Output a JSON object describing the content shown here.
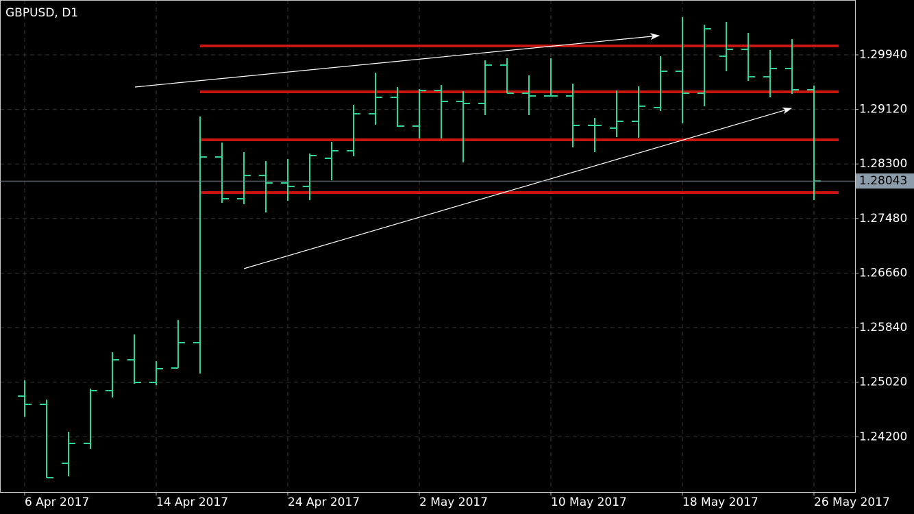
{
  "chart_data": {
    "type": "ohlc",
    "title": "GBPUSD, D1",
    "categories": [
      "6 Apr 2017",
      null,
      null,
      null,
      null,
      null,
      "14 Apr 2017",
      null,
      null,
      null,
      null,
      null,
      "24 Apr 2017",
      null,
      null,
      null,
      null,
      null,
      "2 May 2017",
      null,
      null,
      null,
      null,
      null,
      "10 May 2017",
      null,
      null,
      null,
      null,
      null,
      "18 May 2017",
      null,
      null,
      null,
      null,
      null,
      "26 May 2017"
    ],
    "open": [
      1.24811,
      1.24687,
      1.23801,
      1.241,
      1.24893,
      1.25357,
      1.25017,
      1.25233,
      1.25614,
      1.28405,
      1.27777,
      1.28127,
      1.28014,
      1.27962,
      1.28385,
      1.28498,
      1.29054,
      1.29301,
      1.28869,
      1.29404,
      1.2924,
      1.29209,
      1.29786,
      1.29363,
      1.29322,
      1.29322,
      1.28879,
      1.28838,
      1.28941,
      1.29147,
      1.29693,
      1.29363,
      1.29919,
      1.30022,
      1.2961,
      1.29734,
      1.29415
    ],
    "high": [
      1.25048,
      1.24759,
      1.24275,
      1.24924,
      1.2547,
      1.25738,
      1.25336,
      1.25954,
      1.29013,
      1.28622,
      1.28477,
      1.28344,
      1.28374,
      1.28457,
      1.28632,
      1.29188,
      1.29672,
      1.29456,
      1.29425,
      1.29487,
      1.29394,
      1.29858,
      1.29889,
      1.29631,
      1.29889,
      1.29507,
      1.28992,
      1.29404,
      1.29466,
      1.29919,
      1.30507,
      1.30393,
      1.30434,
      1.3027,
      1.30012,
      1.30177,
      1.29477
    ],
    "low": [
      1.24502,
      1.23585,
      1.23606,
      1.24018,
      1.2479,
      1.24996,
      1.24975,
      1.25233,
      1.25151,
      1.27715,
      1.27695,
      1.27571,
      1.27746,
      1.27756,
      1.28055,
      1.28416,
      1.28889,
      1.28859,
      1.28683,
      1.28683,
      1.28323,
      1.29034,
      1.29363,
      1.29034,
      1.29322,
      1.2855,
      1.28477,
      1.28704,
      1.28694,
      1.29095,
      1.2891,
      1.29168,
      1.29693,
      1.29549,
      1.29301,
      1.29353,
      1.27756
    ],
    "close": [
      1.24687,
      1.23585,
      1.241,
      1.24893,
      1.25357,
      1.25017,
      1.25223,
      1.25614,
      1.28405,
      1.27777,
      1.28127,
      1.28014,
      1.27962,
      1.28426,
      1.28498,
      1.29054,
      1.29301,
      1.28869,
      1.29404,
      1.2924,
      1.29209,
      1.29786,
      1.29363,
      1.29322,
      1.29322,
      1.28879,
      1.28879,
      1.28941,
      1.29168,
      1.29693,
      1.29363,
      1.30331,
      1.30022,
      1.2961,
      1.29734,
      1.29415,
      1.28043
    ],
    "color": "#2fd99a",
    "ylim": [
      1.23369,
      1.30764
    ],
    "yticks": [
      {
        "value": 1.2994,
        "label": "1.29940"
      },
      {
        "value": 1.2912,
        "label": "1.29120"
      },
      {
        "value": 1.283,
        "label": "1.28300"
      },
      {
        "value": 1.2748,
        "label": "1.27480"
      },
      {
        "value": 1.2666,
        "label": "1.26660"
      },
      {
        "value": 1.2584,
        "label": "1.25840"
      },
      {
        "value": 1.2502,
        "label": "1.25020"
      },
      {
        "value": 1.242,
        "label": "1.24200"
      }
    ],
    "grid": true,
    "levels": [
      1.30074,
      1.29384,
      1.28663,
      1.2787
    ],
    "level_color": "#c8160e",
    "last_price": 1.28043
  }
}
